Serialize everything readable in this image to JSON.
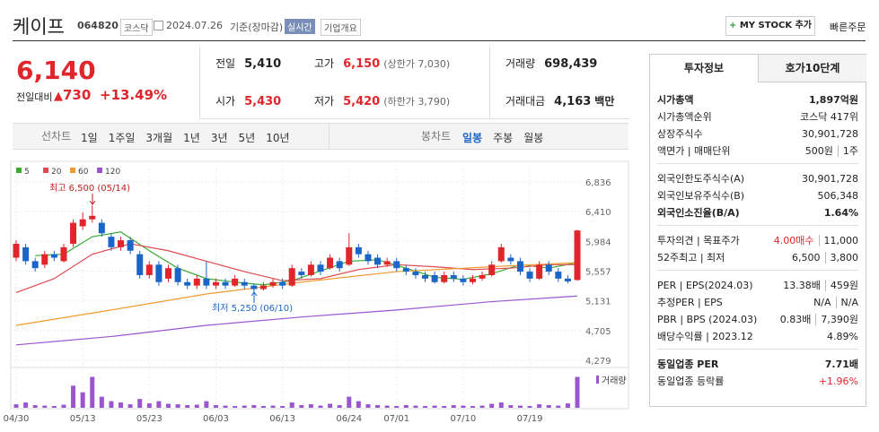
{
  "header": {
    "name": "케이프",
    "code": "064820",
    "market": "코스닥",
    "date": "2024.07.26",
    "basis": "기준(장마감)",
    "realtime": "실시간",
    "company": "기업개요",
    "mystock": "MY STOCK 추가",
    "quick": "빠른주문"
  },
  "price": {
    "current": "6,140",
    "change_label": "전일대비",
    "change": "730",
    "rate": "+13.49%"
  },
  "summary": [
    {
      "label": "전일",
      "value": "5,410"
    },
    {
      "label": "고가",
      "value": "6,150",
      "note": "(상한가 7,030)",
      "color": "#e0252b"
    },
    {
      "label": "거래량",
      "value": "698,439"
    },
    {
      "label": "시가",
      "value": "5,430",
      "color": "#e0252b"
    },
    {
      "label": "저가",
      "value": "5,420",
      "note": "(하한가 3,790)",
      "color": "#e0252b"
    },
    {
      "label": "거래대금",
      "value": "4,163",
      "note": "백만"
    }
  ],
  "tabs": {
    "line": "선차트",
    "line_periods": [
      "1일",
      "1주일",
      "3개월",
      "1년",
      "3년",
      "5년",
      "10년"
    ],
    "candle": "봉차트",
    "candle_periods": [
      "일봉",
      "주봉",
      "월봉"
    ]
  },
  "chart_data": {
    "type": "candlestick",
    "categories": [
      "04/30",
      null,
      null,
      null,
      null,
      null,
      null,
      "05/13",
      null,
      null,
      null,
      null,
      null,
      null,
      "05/23",
      null,
      null,
      null,
      null,
      null,
      null,
      "06/03",
      null,
      null,
      null,
      null,
      null,
      null,
      "06/13",
      null,
      null,
      null,
      null,
      null,
      null,
      "06/24",
      null,
      null,
      null,
      null,
      "07/01",
      null,
      null,
      null,
      null,
      null,
      null,
      "07/10",
      null,
      null,
      null,
      null,
      null,
      null,
      "07/19",
      null,
      null,
      null,
      null,
      null
    ],
    "open": [
      5750,
      5900,
      5700,
      5650,
      5800,
      5700,
      5950,
      6200,
      6300,
      6250,
      6050,
      5900,
      6000,
      5800,
      5500,
      5650,
      5450,
      5600,
      5400,
      5350,
      5450,
      5350,
      5400,
      5350,
      5400,
      5350,
      5300,
      5350,
      5400,
      5350,
      5550,
      5500,
      5650,
      5600,
      5700,
      5650,
      5900,
      5800,
      5750,
      5650,
      5700,
      5600,
      5550,
      5500,
      5500,
      5400,
      5500,
      5450,
      5400,
      5450,
      5500,
      5700,
      5750,
      5700,
      5550,
      5450,
      5650,
      5550,
      5450,
      5430
    ],
    "high": [
      6000,
      5950,
      5750,
      5850,
      5850,
      5950,
      6300,
      6400,
      6500,
      6300,
      6100,
      6050,
      6050,
      5850,
      5700,
      5700,
      5650,
      5650,
      5450,
      5500,
      5700,
      5450,
      5450,
      5500,
      5450,
      5380,
      5400,
      5450,
      5450,
      5650,
      5600,
      5700,
      5700,
      5800,
      5750,
      6100,
      5950,
      5850,
      5800,
      5750,
      5750,
      5650,
      5600,
      5550,
      5550,
      5550,
      5550,
      5500,
      5500,
      5550,
      5700,
      5950,
      5800,
      5750,
      5600,
      5700,
      5700,
      5600,
      5500,
      6150
    ],
    "low": [
      5700,
      5650,
      5550,
      5600,
      5700,
      5680,
      5900,
      6150,
      6250,
      6050,
      5850,
      5850,
      5800,
      5450,
      5450,
      5350,
      5400,
      5350,
      5300,
      5300,
      5300,
      5300,
      5300,
      5330,
      5300,
      5250,
      5280,
      5320,
      5300,
      5330,
      5450,
      5480,
      5500,
      5580,
      5550,
      5630,
      5750,
      5650,
      5600,
      5620,
      5550,
      5500,
      5450,
      5400,
      5380,
      5380,
      5400,
      5350,
      5370,
      5420,
      5480,
      5680,
      5650,
      5500,
      5400,
      5430,
      5500,
      5400,
      5380,
      5420
    ],
    "close": [
      5950,
      5700,
      5600,
      5800,
      5750,
      5900,
      6250,
      6300,
      6350,
      6100,
      5900,
      6000,
      5850,
      5500,
      5650,
      5400,
      5600,
      5400,
      5350,
      5450,
      5350,
      5400,
      5350,
      5450,
      5350,
      5300,
      5350,
      5400,
      5350,
      5600,
      5500,
      5650,
      5550,
      5750,
      5600,
      5900,
      5800,
      5700,
      5650,
      5700,
      5600,
      5550,
      5500,
      5450,
      5400,
      5500,
      5450,
      5400,
      5450,
      5500,
      5650,
      5900,
      5700,
      5550,
      5450,
      5650,
      5550,
      5450,
      5410,
      6140
    ],
    "up_color": "#e0252b",
    "down_color": "#1a66c8",
    "ylim": [
      4279,
      6836
    ],
    "yticks": [
      {
        "value": 6836,
        "label": "6,836"
      },
      {
        "value": 6410,
        "label": "6,410"
      },
      {
        "value": 5984,
        "label": "5,984"
      },
      {
        "value": 5557,
        "label": "5,557"
      },
      {
        "value": 5131,
        "label": "5,131"
      },
      {
        "value": 4705,
        "label": "4,705"
      },
      {
        "value": 4279,
        "label": "4,279"
      }
    ],
    "series": [
      {
        "name": "5",
        "color": "#3aaa35",
        "x": [
          2,
          5,
          8,
          11,
          14,
          17,
          20,
          23,
          26,
          29,
          32,
          35,
          38,
          41,
          44,
          47,
          50,
          53,
          56,
          59
        ],
        "values": [
          5780,
          5800,
          6050,
          6120,
          5850,
          5600,
          5450,
          5400,
          5360,
          5420,
          5560,
          5700,
          5720,
          5600,
          5470,
          5440,
          5520,
          5650,
          5600,
          5680
        ]
      },
      {
        "name": "20",
        "color": "#e04a4f",
        "x": [
          0,
          4,
          8,
          12,
          16,
          20,
          24,
          28,
          32,
          36,
          40,
          44,
          48,
          52,
          56,
          59
        ],
        "values": [
          5250,
          5450,
          5800,
          5950,
          5850,
          5700,
          5550,
          5420,
          5450,
          5580,
          5650,
          5620,
          5580,
          5600,
          5650,
          5650
        ]
      },
      {
        "name": "60",
        "color": "#f29a2e",
        "x": [
          0,
          10,
          20,
          30,
          40,
          50,
          59
        ],
        "values": [
          4780,
          5000,
          5230,
          5400,
          5550,
          5620,
          5680
        ]
      },
      {
        "name": "120",
        "color": "#9a55cf",
        "x": [
          0,
          10,
          20,
          30,
          40,
          50,
          59
        ],
        "values": [
          4500,
          4620,
          4780,
          4900,
          5000,
          5120,
          5200
        ]
      }
    ],
    "volume": {
      "name": "거래량",
      "color": "#9a55cf",
      "ylim": [
        0,
        750000
      ],
      "values": [
        80000,
        120000,
        60000,
        50000,
        40000,
        70000,
        500000,
        350000,
        700000,
        250000,
        150000,
        120000,
        80000,
        200000,
        100000,
        150000,
        90000,
        80000,
        60000,
        70000,
        150000,
        60000,
        50000,
        40000,
        50000,
        60000,
        40000,
        50000,
        40000,
        120000,
        60000,
        80000,
        50000,
        90000,
        60000,
        250000,
        150000,
        80000,
        60000,
        50000,
        40000,
        60000,
        50000,
        40000,
        50000,
        40000,
        60000,
        50000,
        40000,
        50000,
        90000,
        120000,
        60000,
        50000,
        40000,
        80000,
        60000,
        50000,
        100000,
        698439
      ]
    },
    "annotations": {
      "high": "최고 6,500 (05/14)",
      "low": "최저 5,250 (06/10)"
    }
  },
  "invest": {
    "tabs": [
      "투자정보",
      "호가10단계"
    ],
    "sections": [
      [
        {
          "label": "시가총액",
          "bold": true,
          "values": [
            {
              "text": "1,897억원"
            }
          ]
        },
        {
          "label": "시가총액순위",
          "values": [
            {
              "text": "코스닥 417위"
            }
          ]
        },
        {
          "label": "상장주식수",
          "values": [
            {
              "text": "30,901,728"
            }
          ]
        },
        {
          "label": "액면가 | 매매단위",
          "values": [
            {
              "text": "500원"
            },
            {
              "text": "1주"
            }
          ]
        }
      ],
      [
        {
          "label": "외국인한도주식수(A)",
          "values": [
            {
              "text": "30,901,728"
            }
          ]
        },
        {
          "label": "외국인보유주식수(B)",
          "values": [
            {
              "text": "506,348"
            }
          ]
        },
        {
          "label": "외국인소진율(B/A)",
          "bold": true,
          "values": [
            {
              "text": "1.64%"
            }
          ]
        }
      ],
      [
        {
          "label": "투자의견 | 목표주가",
          "values": [
            {
              "text": "4.00매수",
              "color": "#e0252b"
            },
            {
              "text": "11,000"
            }
          ]
        },
        {
          "label": "52주최고 | 최저",
          "values": [
            {
              "text": "6,500"
            },
            {
              "text": "3,800"
            }
          ]
        }
      ],
      [
        {
          "label": "PER | EPS(2024.03)",
          "values": [
            {
              "text": "13.38배"
            },
            {
              "text": "459원"
            }
          ]
        },
        {
          "label": "추정PER | EPS",
          "values": [
            {
              "text": "N/A"
            },
            {
              "text": "N/A"
            }
          ]
        },
        {
          "label": "PBR | BPS (2024.03)",
          "values": [
            {
              "text": "0.83배"
            },
            {
              "text": "7,390원"
            }
          ]
        },
        {
          "label": "배당수익률 | 2023.12",
          "values": [
            {
              "text": "4.89%"
            }
          ]
        }
      ],
      [
        {
          "label": "동일업종 PER",
          "bold": true,
          "values": [
            {
              "text": "7.71배"
            }
          ]
        },
        {
          "label": "동일업종 등락률",
          "values": [
            {
              "text": "+1.96%",
              "color": "#e0252b"
            }
          ]
        }
      ]
    ]
  }
}
